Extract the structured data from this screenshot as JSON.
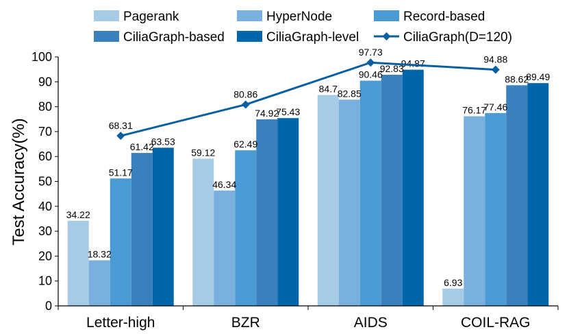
{
  "chart_data": {
    "type": "bar",
    "title": "",
    "xlabel": "",
    "ylabel": "Test Accuracy(%)",
    "ylim": [
      0,
      100
    ],
    "yticks": [
      0,
      10,
      20,
      30,
      40,
      50,
      60,
      70,
      80,
      90,
      100
    ],
    "grid": false,
    "legend_position": "top",
    "categories": [
      "Letter-high",
      "BZR",
      "AIDS",
      "COIL-RAG"
    ],
    "series": [
      {
        "name": "Pagerank",
        "type": "bar",
        "color": "#a6cbe6",
        "values": [
          34.22,
          59.12,
          84.7,
          6.93
        ],
        "labels": [
          "34.22",
          "59.12",
          "84.7",
          "6.93"
        ]
      },
      {
        "name": "HyperNode",
        "type": "bar",
        "color": "#7ab0de",
        "values": [
          18.32,
          46.34,
          82.85,
          76.17
        ],
        "labels": [
          "18.32",
          "46.34",
          "82.85",
          "76.17"
        ]
      },
      {
        "name": "Record-based",
        "type": "bar",
        "color": "#4a9bd4",
        "values": [
          51.17,
          62.49,
          90.46,
          77.46
        ],
        "labels": [
          "51.17",
          "62.49",
          "90.46",
          "77.46"
        ]
      },
      {
        "name": "CiliaGraph-based",
        "type": "bar",
        "color": "#3a80bd",
        "values": [
          61.42,
          74.92,
          92.83,
          88.62
        ],
        "labels": [
          "61.42",
          "74.92",
          "92.83",
          "88.62"
        ]
      },
      {
        "name": "CiliaGraph-level",
        "type": "bar",
        "color": "#0066aa",
        "values": [
          63.53,
          75.43,
          94.87,
          89.49
        ],
        "labels": [
          "63.53",
          "75.43",
          "94.87",
          "89.49"
        ]
      },
      {
        "name": "CiliaGraph(D=120)",
        "type": "line",
        "color": "#0a5fa0",
        "values": [
          68.31,
          80.86,
          97.73,
          94.88
        ],
        "labels": [
          "68.31",
          "80.86",
          "97.73",
          "94.88"
        ]
      }
    ]
  }
}
